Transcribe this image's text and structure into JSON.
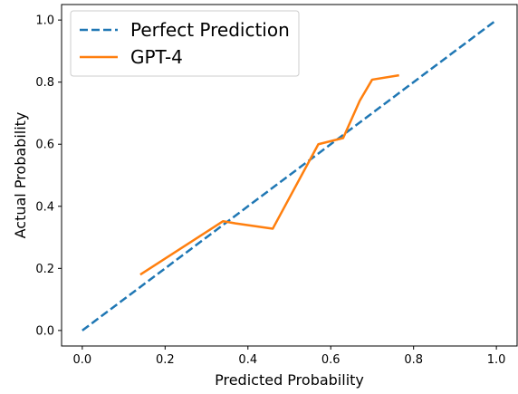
{
  "chart_data": {
    "type": "line",
    "xlabel": "Predicted Probability",
    "ylabel": "Actual Probability",
    "xlim": [
      -0.05,
      1.05
    ],
    "ylim": [
      -0.05,
      1.05
    ],
    "xticks": [
      "0.0",
      "0.2",
      "0.4",
      "0.6",
      "0.8",
      "1.0"
    ],
    "yticks": [
      "0.0",
      "0.2",
      "0.4",
      "0.6",
      "0.8",
      "1.0"
    ],
    "grid": false,
    "legend_position": "top-left",
    "series": [
      {
        "name": "Perfect Prediction",
        "style": "dashed",
        "color": "#1f77b4",
        "x": [
          0.0,
          1.0
        ],
        "y": [
          0.0,
          1.0
        ]
      },
      {
        "name": "GPT-4",
        "style": "solid",
        "color": "#ff7f0e",
        "x": [
          0.14,
          0.34,
          0.37,
          0.46,
          0.57,
          0.63,
          0.67,
          0.7,
          0.765
        ],
        "y": [
          0.18,
          0.352,
          0.345,
          0.328,
          0.6,
          0.62,
          0.74,
          0.808,
          0.822
        ]
      }
    ]
  }
}
